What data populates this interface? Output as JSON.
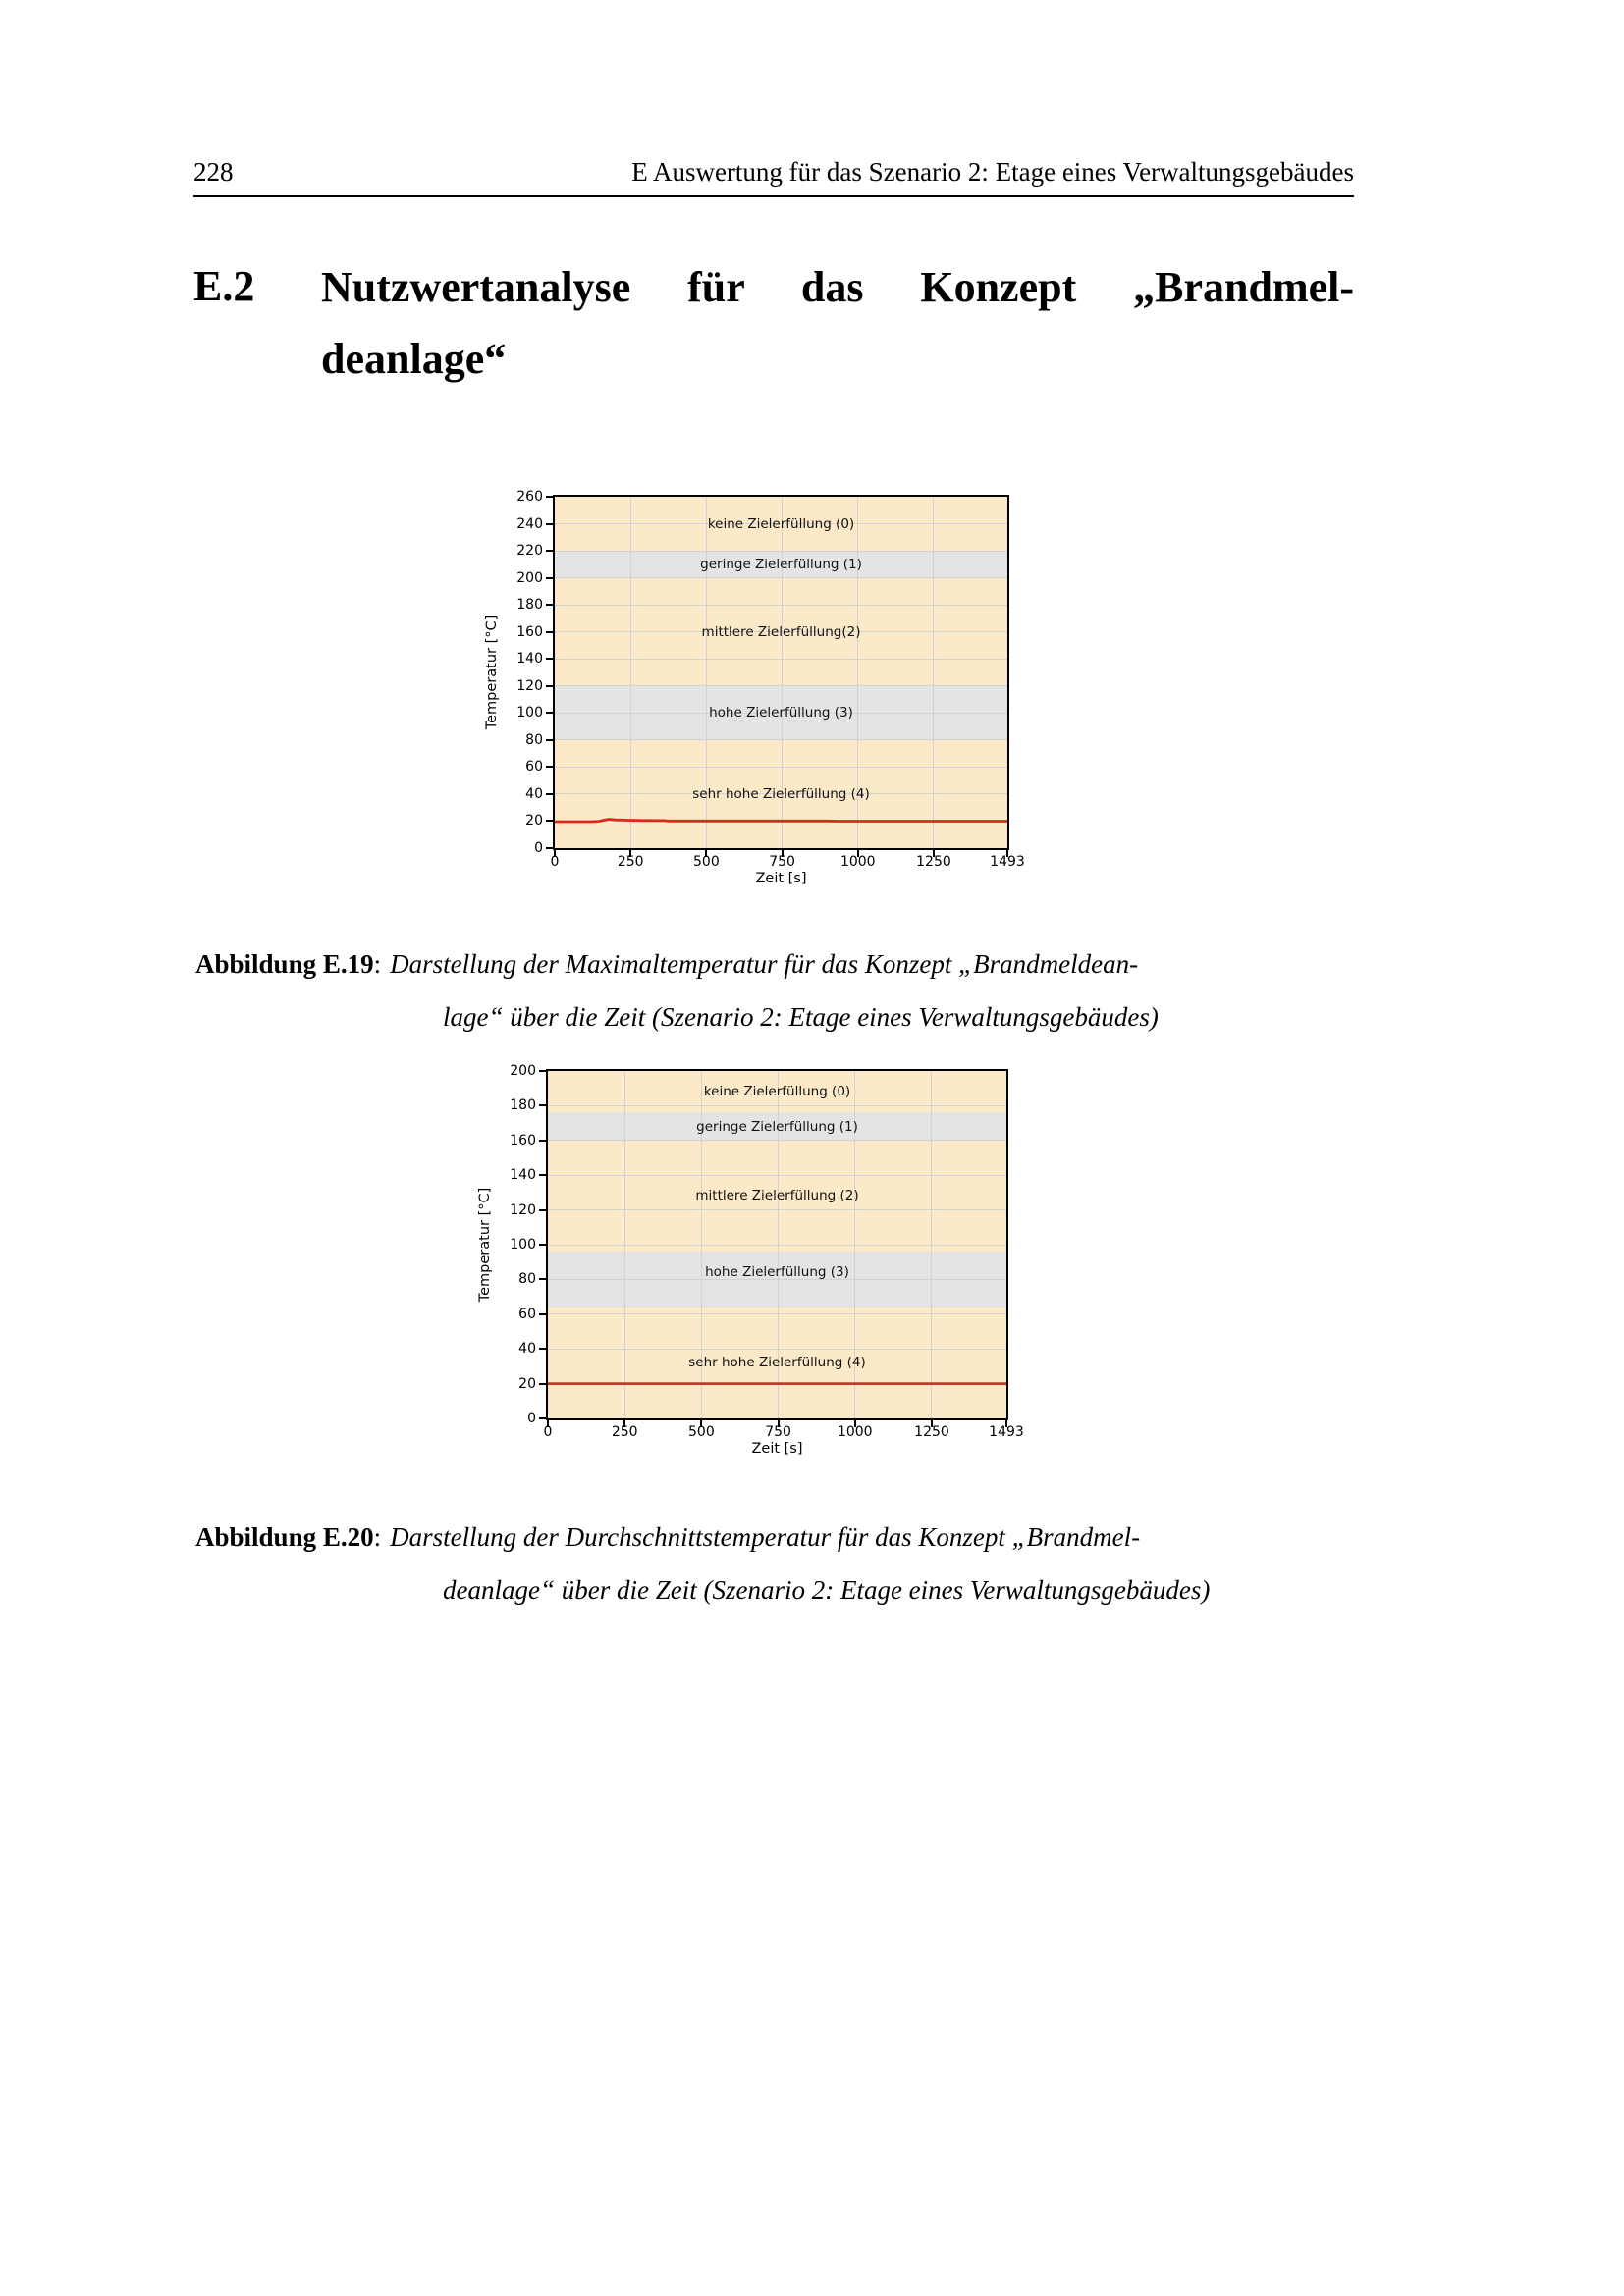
{
  "header": {
    "page_number": "228",
    "title": "E Auswertung für das Szenario 2: Etage eines Verwaltungsgebäudes"
  },
  "section": {
    "number": "E.2",
    "title_line1": "Nutzwertanalyse für das Konzept „Brandmel-",
    "title_line2": "deanlage“"
  },
  "captions": [
    {
      "label": "Abbildung E.19",
      "separator": ":",
      "line1_rest": "Darstellung der Maximaltemperatur für das Konzept „Brandmeldean-",
      "line2": "lage“ über die Zeit (Szenario 2: Etage eines Verwaltungsgebäudes)"
    },
    {
      "label": "Abbildung E.20",
      "separator": ":",
      "line1_rest": "Darstellung der Durchschnittstemperatur für das Konzept „Brandmel-",
      "line2": "deanlage“ über die Zeit (Szenario 2: Etage eines Verwaltungsgebäudes)"
    }
  ],
  "colors": {
    "cream": "#fce9c8",
    "gray": "#e4e4e5",
    "grid": "#d2d2d2",
    "axis": "#000000"
  },
  "chart_data": [
    {
      "type": "line",
      "title": "",
      "xlabel": "Zeit [s]",
      "ylabel": "Temperatur [°C]",
      "xlim": [
        0,
        1493
      ],
      "ylim": [
        0,
        260
      ],
      "xticks": [
        0,
        250,
        500,
        750,
        1000,
        1250,
        1493
      ],
      "yticks": [
        0,
        20,
        40,
        60,
        80,
        100,
        120,
        140,
        160,
        180,
        200,
        220,
        240,
        260
      ],
      "grid": true,
      "bands": [
        {
          "from": 220,
          "to": 260,
          "color": "cream",
          "label": "keine Zielerfüllung (0)",
          "label_y": 240
        },
        {
          "from": 200,
          "to": 220,
          "color": "gray",
          "label": "geringe Zielerfüllung (1)",
          "label_y": 210
        },
        {
          "from": 120,
          "to": 200,
          "color": "cream",
          "label": "mittlere Zielerfüllung(2)",
          "label_y": 160
        },
        {
          "from": 80,
          "to": 120,
          "color": "gray",
          "label": "hohe Zielerfüllung (3)",
          "label_y": 100
        },
        {
          "from": 0,
          "to": 80,
          "color": "cream",
          "label": "sehr hohe Zielerfüllung (4)",
          "label_y": 40
        }
      ],
      "series": [
        {
          "name": "Maximaltemperatur",
          "color": "#d92b1b",
          "x": [
            0,
            120,
            145,
            165,
            180,
            200,
            240,
            300,
            360,
            375,
            900,
            940,
            1493
          ],
          "y": [
            19.6,
            19.6,
            19.9,
            20.9,
            21.4,
            21.0,
            20.7,
            20.5,
            20.4,
            20.1,
            20.1,
            20.0,
            20.0
          ]
        }
      ]
    },
    {
      "type": "line",
      "title": "",
      "xlabel": "Zeit [s]",
      "ylabel": "Temperatur [°C]",
      "xlim": [
        0,
        1493
      ],
      "ylim": [
        0,
        200
      ],
      "xticks": [
        0,
        250,
        500,
        750,
        1000,
        1250,
        1493
      ],
      "yticks": [
        0,
        20,
        40,
        60,
        80,
        100,
        120,
        140,
        160,
        180,
        200
      ],
      "grid": true,
      "bands": [
        {
          "from": 176,
          "to": 200,
          "color": "cream",
          "label": "keine Zielerfüllung (0)",
          "label_y": 188
        },
        {
          "from": 160,
          "to": 176,
          "color": "gray",
          "label": "geringe Zielerfüllung (1)",
          "label_y": 168
        },
        {
          "from": 96,
          "to": 160,
          "color": "cream",
          "label": "mittlere Zielerfüllung (2)",
          "label_y": 128
        },
        {
          "from": 64,
          "to": 96,
          "color": "gray",
          "label": "hohe Zielerfüllung (3)",
          "label_y": 84
        },
        {
          "from": 0,
          "to": 64,
          "color": "cream",
          "label": "sehr hohe Zielerfüllung (4)",
          "label_y": 32
        }
      ],
      "series": [
        {
          "name": "Durchschnittstemperatur",
          "color": "#c23b28",
          "x": [
            0,
            1493
          ],
          "y": [
            20.0,
            20.0
          ]
        }
      ]
    }
  ]
}
